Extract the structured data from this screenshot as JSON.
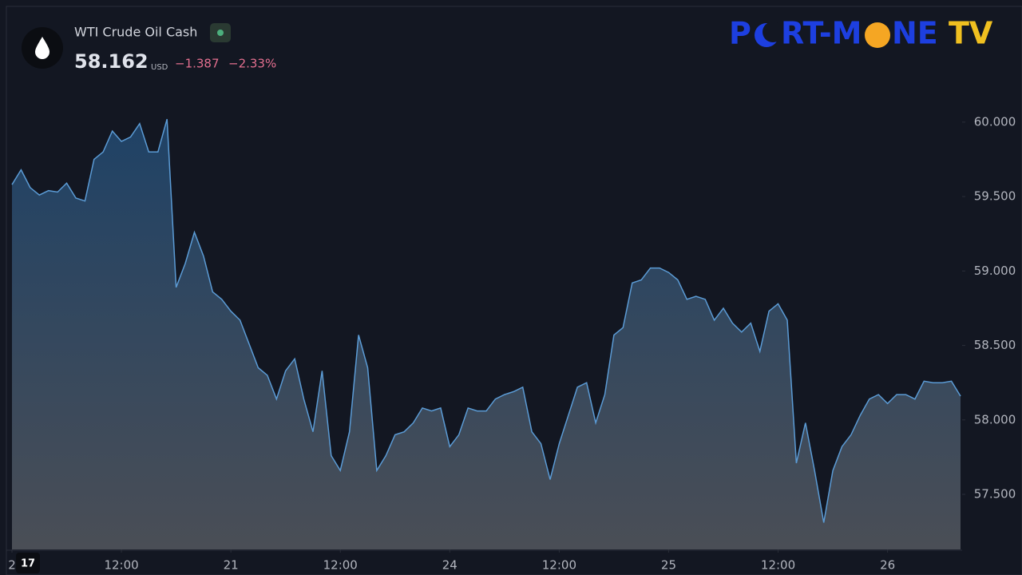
{
  "header": {
    "symbol": "WTI Crude Oil Cash",
    "price": "58.162",
    "currency": "USD",
    "change": "−1.387",
    "change_percent": "−2.33%",
    "logo": {
      "first": "P",
      "middle": "RT-M",
      "last": "NE",
      "suffix": "TV"
    }
  },
  "chart_data": {
    "type": "area",
    "color": "#5b9bd5",
    "x": [
      0,
      1,
      2,
      3,
      4,
      5,
      6,
      7,
      8,
      9,
      10,
      11,
      12,
      13,
      14,
      15,
      16,
      17,
      18,
      19,
      20,
      21,
      22,
      23,
      24,
      25,
      26,
      27,
      28,
      29,
      30,
      31,
      32,
      33,
      34,
      35,
      36,
      37,
      38,
      39,
      40,
      41,
      42,
      43,
      44,
      45,
      46,
      47,
      48,
      49,
      50,
      51,
      52,
      53,
      54,
      55,
      56,
      57,
      58,
      59,
      60,
      61,
      62,
      63,
      64,
      65,
      66,
      67,
      68,
      69,
      70,
      71,
      72,
      73,
      74,
      75,
      76,
      77,
      78,
      79,
      80,
      81,
      82,
      83,
      84,
      85,
      86,
      87,
      88,
      89,
      90,
      91,
      92,
      93,
      94,
      95,
      96,
      97,
      98,
      99,
      100,
      101,
      102,
      103,
      104
    ],
    "series": [
      {
        "name": "WTI Crude Oil Cash",
        "color": "#5b9bd5",
        "values": [
          59.58,
          59.68,
          59.56,
          59.51,
          59.54,
          59.53,
          59.59,
          59.49,
          59.47,
          59.75,
          59.8,
          59.94,
          59.87,
          59.9,
          59.99,
          59.8,
          59.8,
          60.02,
          58.89,
          59.05,
          59.26,
          59.1,
          58.86,
          58.81,
          58.73,
          58.67,
          58.51,
          58.35,
          58.3,
          58.14,
          58.33,
          58.41,
          58.14,
          57.92,
          58.33,
          57.76,
          57.66,
          57.92,
          58.57,
          58.35,
          57.66,
          57.76,
          57.9,
          57.92,
          57.98,
          58.08,
          58.06,
          58.08,
          57.82,
          57.9,
          58.08,
          58.06,
          58.06,
          58.14,
          58.17,
          58.19,
          58.22,
          57.92,
          57.84,
          57.6,
          57.84,
          58.03,
          58.22,
          58.25,
          57.98,
          58.17,
          58.57,
          58.62,
          58.92,
          58.94,
          59.02,
          59.02,
          58.99,
          58.94,
          58.81,
          58.83,
          58.81,
          58.67,
          58.75,
          58.65,
          58.59,
          58.65,
          58.46,
          58.73,
          58.78,
          58.67,
          57.71,
          57.98,
          57.66,
          57.31,
          57.66,
          57.82,
          57.9,
          58.03,
          58.14,
          58.17,
          58.11,
          58.17,
          58.17,
          58.14,
          58.26,
          58.25,
          58.25,
          58.26,
          58.16
        ]
      }
    ],
    "xlim": [
      0,
      104
    ],
    "xticks": [
      {
        "value": 0,
        "label": "2"
      },
      {
        "value": 12,
        "label": "12:00"
      },
      {
        "value": 24,
        "label": "21"
      },
      {
        "value": 36,
        "label": "12:00"
      },
      {
        "value": 48,
        "label": "24"
      },
      {
        "value": 60,
        "label": "12:00"
      },
      {
        "value": 72,
        "label": "25"
      },
      {
        "value": 84,
        "label": "12:00"
      },
      {
        "value": 96,
        "label": "26"
      }
    ],
    "ylim": [
      57.13,
      60.82
    ],
    "yticks": [
      {
        "value": 57.5,
        "label": "57.500"
      },
      {
        "value": 58,
        "label": "58.000"
      },
      {
        "value": 58.5,
        "label": "58.500"
      },
      {
        "value": 59,
        "label": "59.000"
      },
      {
        "value": 59.5,
        "label": "59.500"
      },
      {
        "value": 60,
        "label": "60.000"
      }
    ]
  }
}
